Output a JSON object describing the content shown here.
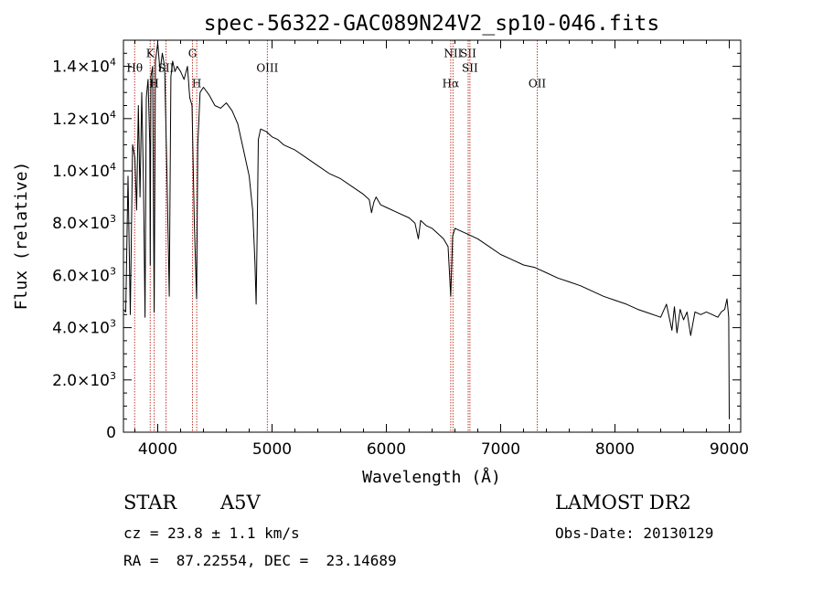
{
  "chart_data": {
    "type": "line",
    "title": "spec-56322-GAC089N24V2_sp10-046.fits",
    "xlabel": "Wavelength (Å)",
    "ylabel": "Flux (relative)",
    "xlim": [
      3700,
      9100
    ],
    "ylim": [
      0,
      15000
    ],
    "x_ticks": [
      {
        "value": 4000,
        "label": "4000"
      },
      {
        "value": 5000,
        "label": "5000"
      },
      {
        "value": 6000,
        "label": "6000"
      },
      {
        "value": 7000,
        "label": "7000"
      },
      {
        "value": 8000,
        "label": "8000"
      },
      {
        "value": 9000,
        "label": "9000"
      }
    ],
    "y_ticks": [
      {
        "value": 0,
        "mantissa": "0",
        "exp": ""
      },
      {
        "value": 2000,
        "mantissa": "2.0×10",
        "exp": "3"
      },
      {
        "value": 4000,
        "mantissa": "4.0×10",
        "exp": "3"
      },
      {
        "value": 6000,
        "mantissa": "6.0×10",
        "exp": "3"
      },
      {
        "value": 8000,
        "mantissa": "8.0×10",
        "exp": "3"
      },
      {
        "value": 10000,
        "mantissa": "1.0×10",
        "exp": "4"
      },
      {
        "value": 12000,
        "mantissa": "1.2×10",
        "exp": "4"
      },
      {
        "value": 14000,
        "mantissa": "1.4×10",
        "exp": "4"
      }
    ],
    "line_markers": [
      {
        "label": "Hθ",
        "wavelength": 3798,
        "flux": 13800
      },
      {
        "label": "K",
        "wavelength": 3934,
        "flux": 14350
      },
      {
        "label": "H",
        "wavelength": 3969,
        "flux": 13200
      },
      {
        "label": "SII",
        "wavelength": 4072,
        "flux": 13800
      },
      {
        "label": "G",
        "wavelength": 4304,
        "flux": 14350
      },
      {
        "label": "H",
        "wavelength": 4341,
        "flux": 13200
      },
      {
        "label": "OIII",
        "wavelength": 4959,
        "flux": 13800
      },
      {
        "label": "Hα",
        "wavelength": 6563,
        "flux": 13200
      },
      {
        "label": "NII",
        "wavelength": 6583,
        "flux": 14350
      },
      {
        "label": "SII",
        "wavelength": 6716,
        "flux": 14350
      },
      {
        "label": "SII",
        "wavelength": 6731,
        "flux": 13800
      },
      {
        "label": "OII",
        "wavelength": 7320,
        "flux": 13200
      }
    ],
    "series": [
      {
        "name": "spectrum",
        "x": [
          3700,
          3720,
          3740,
          3760,
          3780,
          3800,
          3815,
          3830,
          3845,
          3860,
          3875,
          3889,
          3900,
          3915,
          3930,
          3934,
          3940,
          3955,
          3969,
          3980,
          4000,
          4020,
          4040,
          4060,
          4080,
          4101,
          4115,
          4130,
          4150,
          4170,
          4200,
          4230,
          4260,
          4280,
          4300,
          4320,
          4340,
          4350,
          4370,
          4400,
          4450,
          4500,
          4550,
          4600,
          4650,
          4700,
          4750,
          4800,
          4830,
          4850,
          4861,
          4870,
          4880,
          4900,
          4950,
          5000,
          5050,
          5100,
          5150,
          5200,
          5300,
          5400,
          5500,
          5600,
          5700,
          5800,
          5850,
          5870,
          5890,
          5910,
          5950,
          6000,
          6100,
          6200,
          6250,
          6280,
          6300,
          6350,
          6400,
          6450,
          6500,
          6540,
          6563,
          6580,
          6600,
          6700,
          6800,
          6900,
          7000,
          7100,
          7200,
          7300,
          7400,
          7500,
          7600,
          7700,
          7800,
          7900,
          8000,
          8100,
          8200,
          8300,
          8400,
          8450,
          8498,
          8520,
          8542,
          8570,
          8600,
          8630,
          8662,
          8700,
          8750,
          8800,
          8850,
          8900,
          8930,
          8960,
          8980,
          8995,
          9000
        ],
        "y": [
          4700,
          4600,
          9800,
          4500,
          11000,
          10500,
          8500,
          12500,
          9000,
          13000,
          9500,
          4400,
          12800,
          13500,
          11000,
          6400,
          13600,
          14000,
          4600,
          14200,
          14900,
          13800,
          14500,
          14000,
          10000,
          5200,
          13600,
          14200,
          13800,
          14000,
          13800,
          13500,
          14000,
          12800,
          12500,
          8000,
          5100,
          11000,
          13000,
          13200,
          12900,
          12500,
          12400,
          12600,
          12300,
          11800,
          10800,
          9800,
          8500,
          6500,
          4900,
          7800,
          11200,
          11600,
          11500,
          11300,
          11200,
          11000,
          10900,
          10800,
          10500,
          10200,
          9900,
          9700,
          9400,
          9100,
          8900,
          8400,
          8800,
          9000,
          8700,
          8600,
          8400,
          8200,
          8000,
          7400,
          8100,
          7900,
          7800,
          7600,
          7400,
          7100,
          5200,
          7500,
          7800,
          7600,
          7400,
          7100,
          6800,
          6600,
          6400,
          6300,
          6100,
          5900,
          5750,
          5600,
          5400,
          5200,
          5050,
          4900,
          4700,
          4550,
          4400,
          4900,
          3900,
          4800,
          3800,
          4700,
          4300,
          4600,
          3700,
          4600,
          4500,
          4600,
          4500,
          4400,
          4600,
          4700,
          5100,
          4400,
          500
        ]
      }
    ]
  },
  "info": {
    "object_type": "STAR",
    "spectral_class": "A5V",
    "survey": "LAMOST DR2",
    "redshift": "cz = 23.8 ± 1.1 km/s",
    "coordinates": "RA =  87.22554, DEC =  23.14689",
    "obs_date": "Obs-Date: 20130129"
  },
  "colors": {
    "spectrum": "#000000",
    "marker": "#c0392b",
    "axis": "#000000"
  }
}
